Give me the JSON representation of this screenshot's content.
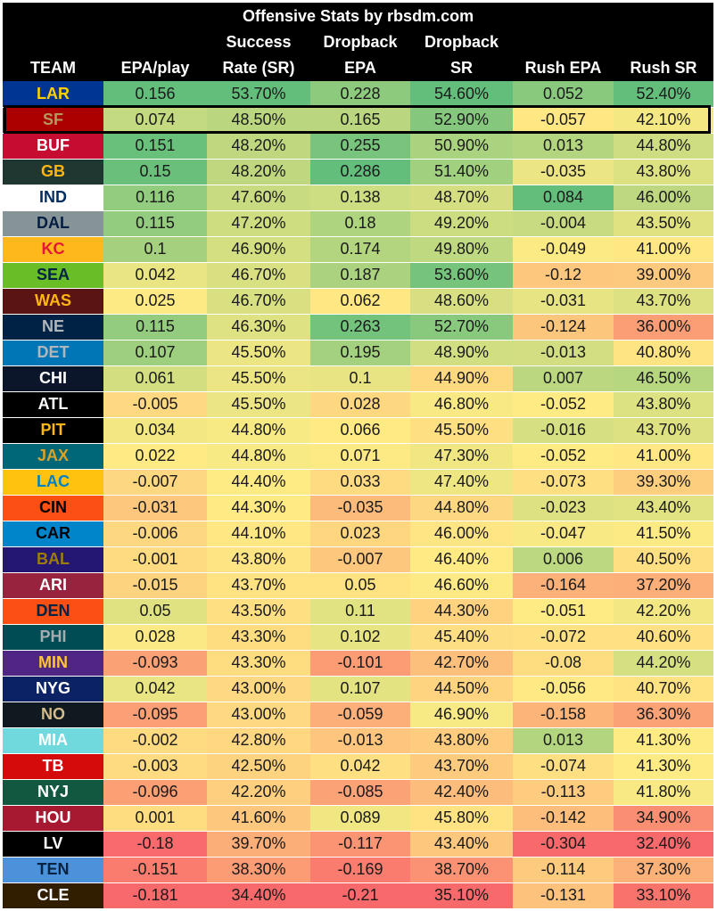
{
  "chart_data": {
    "type": "table",
    "title": "Offensive Stats by rbsdm.com",
    "columns": [
      {
        "key": "team",
        "line1": "",
        "line2": "TEAM"
      },
      {
        "key": "epa",
        "line1": "",
        "line2": "EPA/play"
      },
      {
        "key": "sr",
        "line1": "Success",
        "line2": "Rate (SR)"
      },
      {
        "key": "db_epa",
        "line1": "Dropback",
        "line2": "EPA"
      },
      {
        "key": "db_sr",
        "line1": "Dropback",
        "line2": "SR"
      },
      {
        "key": "rush_epa",
        "line1": "",
        "line2": "Rush EPA"
      },
      {
        "key": "rush_sr",
        "line1": "",
        "line2": "Rush SR"
      }
    ],
    "highlighted_team": "SF",
    "rows": [
      {
        "team": "LAR",
        "bg": "#003594",
        "fg": "#FFD100",
        "epa": "0.156",
        "sr": "53.70%",
        "db_epa": "0.228",
        "db_sr": "54.60%",
        "rush_epa": "0.052",
        "rush_sr": "52.40%"
      },
      {
        "team": "SF",
        "bg": "#AA0000",
        "fg": "#B3995D",
        "epa": "0.074",
        "sr": "48.50%",
        "db_epa": "0.165",
        "db_sr": "52.90%",
        "rush_epa": "-0.057",
        "rush_sr": "42.10%"
      },
      {
        "team": "BUF",
        "bg": "#C60C30",
        "fg": "#FFFFFF",
        "epa": "0.151",
        "sr": "48.20%",
        "db_epa": "0.255",
        "db_sr": "50.90%",
        "rush_epa": "0.013",
        "rush_sr": "44.80%"
      },
      {
        "team": "GB",
        "bg": "#203731",
        "fg": "#FFB612",
        "epa": "0.15",
        "sr": "48.20%",
        "db_epa": "0.286",
        "db_sr": "51.40%",
        "rush_epa": "-0.035",
        "rush_sr": "43.80%"
      },
      {
        "team": "IND",
        "bg": "#FFFFFF",
        "fg": "#002C5F",
        "epa": "0.116",
        "sr": "47.60%",
        "db_epa": "0.138",
        "db_sr": "48.70%",
        "rush_epa": "0.084",
        "rush_sr": "46.00%"
      },
      {
        "team": "DAL",
        "bg": "#869397",
        "fg": "#041E42",
        "epa": "0.115",
        "sr": "47.20%",
        "db_epa": "0.18",
        "db_sr": "49.20%",
        "rush_epa": "-0.004",
        "rush_sr": "43.50%"
      },
      {
        "team": "KC",
        "bg": "#FFB81C",
        "fg": "#E31837",
        "epa": "0.1",
        "sr": "46.90%",
        "db_epa": "0.174",
        "db_sr": "49.80%",
        "rush_epa": "-0.049",
        "rush_sr": "41.00%"
      },
      {
        "team": "SEA",
        "bg": "#69BE28",
        "fg": "#002244",
        "epa": "0.042",
        "sr": "46.70%",
        "db_epa": "0.187",
        "db_sr": "53.60%",
        "rush_epa": "-0.12",
        "rush_sr": "39.00%"
      },
      {
        "team": "WAS",
        "bg": "#5A1414",
        "fg": "#FFB612",
        "epa": "0.025",
        "sr": "46.70%",
        "db_epa": "0.062",
        "db_sr": "48.60%",
        "rush_epa": "-0.031",
        "rush_sr": "43.70%"
      },
      {
        "team": "NE",
        "bg": "#002244",
        "fg": "#B0B7BC",
        "epa": "0.115",
        "sr": "46.30%",
        "db_epa": "0.263",
        "db_sr": "52.70%",
        "rush_epa": "-0.124",
        "rush_sr": "36.00%"
      },
      {
        "team": "DET",
        "bg": "#0076B6",
        "fg": "#B0B7BC",
        "epa": "0.107",
        "sr": "45.50%",
        "db_epa": "0.195",
        "db_sr": "48.90%",
        "rush_epa": "-0.013",
        "rush_sr": "40.80%"
      },
      {
        "team": "CHI",
        "bg": "#0B162A",
        "fg": "#FFFFFF",
        "epa": "0.061",
        "sr": "45.50%",
        "db_epa": "0.1",
        "db_sr": "44.90%",
        "rush_epa": "0.007",
        "rush_sr": "46.50%"
      },
      {
        "team": "ATL",
        "bg": "#000000",
        "fg": "#FFFFFF",
        "epa": "-0.005",
        "sr": "45.50%",
        "db_epa": "0.028",
        "db_sr": "46.80%",
        "rush_epa": "-0.052",
        "rush_sr": "43.80%"
      },
      {
        "team": "PIT",
        "bg": "#000000",
        "fg": "#FFB612",
        "epa": "0.034",
        "sr": "44.80%",
        "db_epa": "0.066",
        "db_sr": "45.50%",
        "rush_epa": "-0.016",
        "rush_sr": "43.70%"
      },
      {
        "team": "JAX",
        "bg": "#006778",
        "fg": "#D7A22A",
        "epa": "0.022",
        "sr": "44.80%",
        "db_epa": "0.071",
        "db_sr": "47.30%",
        "rush_epa": "-0.052",
        "rush_sr": "41.00%"
      },
      {
        "team": "LAC",
        "bg": "#FFC20E",
        "fg": "#0080C6",
        "epa": "-0.007",
        "sr": "44.40%",
        "db_epa": "0.033",
        "db_sr": "47.40%",
        "rush_epa": "-0.073",
        "rush_sr": "39.30%"
      },
      {
        "team": "CIN",
        "bg": "#FB4F14",
        "fg": "#000000",
        "epa": "-0.031",
        "sr": "44.30%",
        "db_epa": "-0.035",
        "db_sr": "44.80%",
        "rush_epa": "-0.023",
        "rush_sr": "43.40%"
      },
      {
        "team": "CAR",
        "bg": "#0085CA",
        "fg": "#000000",
        "epa": "-0.006",
        "sr": "44.10%",
        "db_epa": "0.023",
        "db_sr": "46.00%",
        "rush_epa": "-0.047",
        "rush_sr": "41.50%"
      },
      {
        "team": "BAL",
        "bg": "#241773",
        "fg": "#9E7C0C",
        "epa": "-0.001",
        "sr": "43.80%",
        "db_epa": "-0.007",
        "db_sr": "46.40%",
        "rush_epa": "0.006",
        "rush_sr": "40.50%"
      },
      {
        "team": "ARI",
        "bg": "#97233F",
        "fg": "#FFFFFF",
        "epa": "-0.015",
        "sr": "43.70%",
        "db_epa": "0.05",
        "db_sr": "46.60%",
        "rush_epa": "-0.164",
        "rush_sr": "37.20%"
      },
      {
        "team": "DEN",
        "bg": "#FB4F14",
        "fg": "#002244",
        "epa": "0.05",
        "sr": "43.50%",
        "db_epa": "0.11",
        "db_sr": "44.30%",
        "rush_epa": "-0.051",
        "rush_sr": "42.20%"
      },
      {
        "team": "PHI",
        "bg": "#004C54",
        "fg": "#A5ACAF",
        "epa": "0.028",
        "sr": "43.30%",
        "db_epa": "0.102",
        "db_sr": "45.40%",
        "rush_epa": "-0.072",
        "rush_sr": "40.60%"
      },
      {
        "team": "MIN",
        "bg": "#4F2683",
        "fg": "#FFC62F",
        "epa": "-0.093",
        "sr": "43.30%",
        "db_epa": "-0.101",
        "db_sr": "42.70%",
        "rush_epa": "-0.08",
        "rush_sr": "44.20%"
      },
      {
        "team": "NYG",
        "bg": "#0B2265",
        "fg": "#FFFFFF",
        "epa": "0.042",
        "sr": "43.00%",
        "db_epa": "0.107",
        "db_sr": "44.50%",
        "rush_epa": "-0.056",
        "rush_sr": "40.70%"
      },
      {
        "team": "NO",
        "bg": "#101820",
        "fg": "#D3BC8D",
        "epa": "-0.095",
        "sr": "43.00%",
        "db_epa": "-0.059",
        "db_sr": "46.90%",
        "rush_epa": "-0.158",
        "rush_sr": "36.30%"
      },
      {
        "team": "MIA",
        "bg": "#6FD9DD",
        "fg": "#FFFFFF",
        "epa": "-0.002",
        "sr": "42.80%",
        "db_epa": "-0.013",
        "db_sr": "43.80%",
        "rush_epa": "0.013",
        "rush_sr": "41.30%"
      },
      {
        "team": "TB",
        "bg": "#D50A0A",
        "fg": "#FFFFFF",
        "epa": "-0.003",
        "sr": "42.50%",
        "db_epa": "0.042",
        "db_sr": "43.70%",
        "rush_epa": "-0.074",
        "rush_sr": "41.30%"
      },
      {
        "team": "NYJ",
        "bg": "#125740",
        "fg": "#FFFFFF",
        "epa": "-0.096",
        "sr": "42.20%",
        "db_epa": "-0.085",
        "db_sr": "42.40%",
        "rush_epa": "-0.113",
        "rush_sr": "41.80%"
      },
      {
        "team": "HOU",
        "bg": "#A71930",
        "fg": "#FFFFFF",
        "epa": "0.001",
        "sr": "41.60%",
        "db_epa": "0.089",
        "db_sr": "45.80%",
        "rush_epa": "-0.142",
        "rush_sr": "34.90%"
      },
      {
        "team": "LV",
        "bg": "#000000",
        "fg": "#FFFFFF",
        "epa": "-0.18",
        "sr": "39.70%",
        "db_epa": "-0.117",
        "db_sr": "43.40%",
        "rush_epa": "-0.304",
        "rush_sr": "32.40%"
      },
      {
        "team": "TEN",
        "bg": "#4B92DB",
        "fg": "#0C2340",
        "epa": "-0.151",
        "sr": "38.30%",
        "db_epa": "-0.169",
        "db_sr": "38.70%",
        "rush_epa": "-0.114",
        "rush_sr": "37.30%"
      },
      {
        "team": "CLE",
        "bg": "#311D00",
        "fg": "#FFFFFF",
        "epa": "-0.181",
        "sr": "34.40%",
        "db_epa": "-0.21",
        "db_sr": "35.10%",
        "rush_epa": "-0.131",
        "rush_sr": "33.10%"
      }
    ],
    "color_scale": {
      "low": "#F8696B",
      "mid": "#FFEB84",
      "high": "#63BE7B"
    }
  }
}
